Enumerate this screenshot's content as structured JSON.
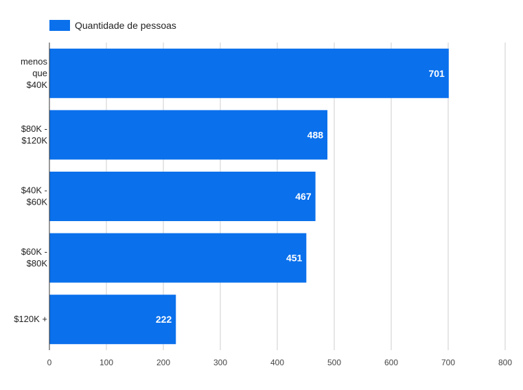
{
  "chart_data": {
    "type": "bar",
    "orientation": "horizontal",
    "categories": [
      [
        "menos",
        "que",
        "$40K"
      ],
      [
        "$80K -",
        "$120K"
      ],
      [
        "$40K -",
        "$60K"
      ],
      [
        "$60K -",
        "$80K"
      ],
      [
        "$120K +"
      ]
    ],
    "series": [
      {
        "name": "Quantidade de pessoas",
        "values": [
          701,
          488,
          467,
          451,
          222
        ],
        "color": "#0a70ec"
      }
    ],
    "xlim": [
      0,
      800
    ],
    "xticks": [
      0,
      100,
      200,
      300,
      400,
      500,
      600,
      700,
      800
    ],
    "grid": true,
    "legend": "top-left",
    "data_labels": true
  }
}
